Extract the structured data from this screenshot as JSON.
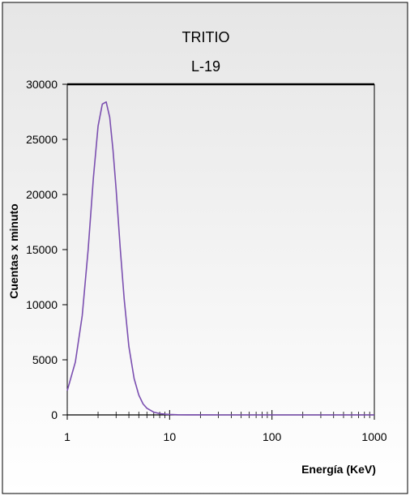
{
  "chart_data": {
    "type": "line",
    "title": "TRITIO",
    "subtitle": "L-19",
    "xlabel": "Energía (KeV)",
    "ylabel": "Cuentas x minuto",
    "xscale": "log",
    "xlim": [
      1,
      1000
    ],
    "ylim": [
      0,
      30000
    ],
    "x_tick_labels": [
      "1",
      "10",
      "100",
      "1000"
    ],
    "y_tick_labels": [
      "0",
      "5000",
      "10000",
      "15000",
      "20000",
      "25000",
      "30000"
    ],
    "grid": false,
    "legend": "none",
    "colors": {
      "line": "#7b4fb0",
      "background_top": "#e6e6e6",
      "background_bottom": "#ffffff",
      "frame": "#000000"
    },
    "series": [
      {
        "x": [
          1,
          1.2,
          1.4,
          1.6,
          1.8,
          2.0,
          2.2,
          2.4,
          2.6,
          2.8,
          3.0,
          3.3,
          3.6,
          4.0,
          4.5,
          5.0,
          5.5,
          6.0,
          7.0,
          8.0,
          9.0,
          10,
          12,
          15,
          20,
          30,
          50,
          100,
          200,
          500,
          1000
        ],
        "y": [
          2200,
          4800,
          9000,
          15000,
          21500,
          26200,
          28200,
          28400,
          27000,
          24000,
          20500,
          15000,
          10500,
          6200,
          3300,
          1800,
          1000,
          600,
          250,
          120,
          70,
          40,
          15,
          5,
          2,
          0,
          0,
          0,
          0,
          0,
          0
        ]
      }
    ]
  }
}
